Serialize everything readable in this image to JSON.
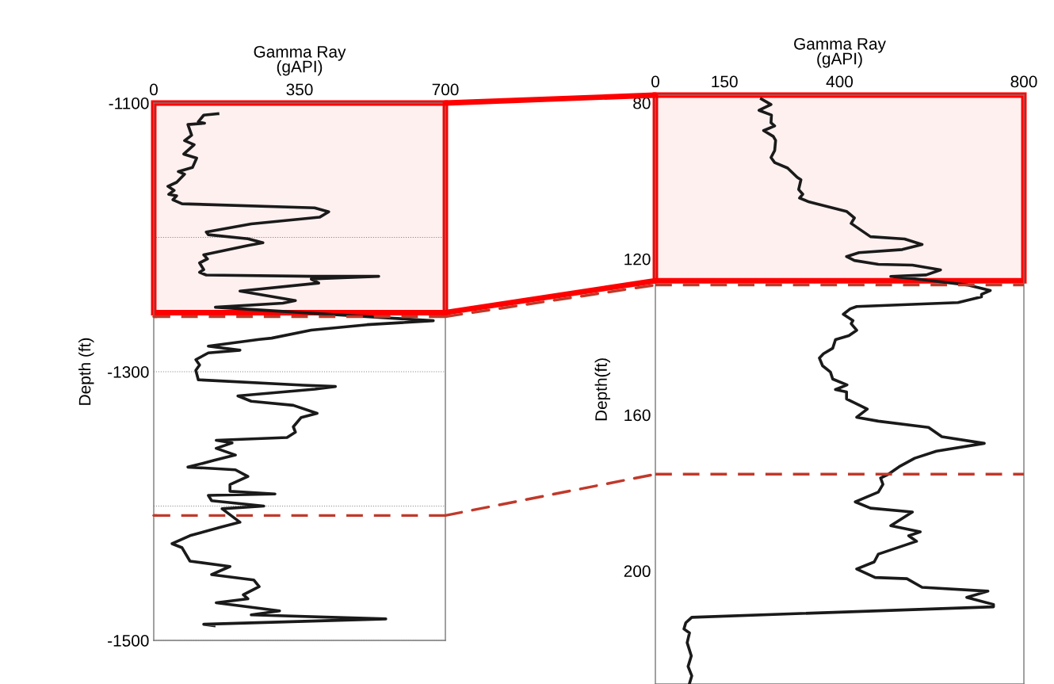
{
  "chart_data": [
    {
      "type": "line",
      "xlabel": "Gamma Ray\n(gAPI)",
      "ylabel": "Depth (ft)",
      "xlim": [
        0,
        700
      ],
      "xticks": [
        0,
        350,
        700
      ],
      "ylim": [
        -1500,
        -1100
      ],
      "yticks": [
        -1100,
        {
          "value": -1200,
          "label": null
        },
        -1300,
        {
          "value": -1400,
          "label": null
        },
        -1500
      ],
      "grid": "y",
      "marker": "none",
      "line_style": "solid",
      "series": [
        {
          "color": "#1a1a1a",
          "x": [
            154,
            120,
            107,
            122,
            82,
            91,
            74,
            97,
            72,
            103,
            93,
            59,
            74,
            55,
            34,
            49,
            36,
            55,
            46,
            68,
            386,
            420,
            398,
            234,
            126,
            131,
            226,
            262,
            226,
            120,
            129,
            110,
            120,
            110,
            126,
            378,
            540,
            378,
            396,
            207,
            340,
            310,
            148,
            671,
            512,
            378,
            283,
            253,
            131,
            207,
            131,
            101,
            110,
            101,
            107,
            359,
            436,
            387,
            202,
            234,
            335,
            392,
            354,
            335,
            340,
            320,
            150,
            188,
            150,
            196,
            145,
            82,
            139,
            196,
            226,
            183,
            183,
            291,
            131,
            139,
            264,
            164,
            207,
            158,
            87,
            44,
            68,
            87,
            183,
            139,
            240,
            253,
            215,
            226,
            150,
            302,
            234,
            557,
            120,
            145
          ],
          "values": [
            -1108,
            -1109,
            -1114,
            -1115,
            -1116,
            -1124,
            -1128,
            -1131,
            -1138,
            -1141,
            -1148,
            -1151,
            -1153,
            -1159,
            -1162,
            -1165,
            -1168,
            -1169,
            -1172,
            -1175,
            -1178,
            -1181,
            -1185,
            -1190,
            -1196,
            -1198,
            -1201,
            -1204,
            -1206,
            -1213,
            -1216,
            -1219,
            -1224,
            -1226,
            -1228,
            -1229,
            -1229,
            -1231,
            -1234,
            -1240,
            -1247,
            -1249,
            -1252,
            -1262,
            -1265,
            -1269,
            -1275,
            -1276,
            -1281,
            -1284,
            -1286,
            -1291,
            -1295,
            -1299,
            -1306,
            -1310,
            -1311,
            -1313,
            -1318,
            -1322,
            -1325,
            -1331,
            -1334,
            -1341,
            -1345,
            -1349,
            -1351,
            -1353,
            -1357,
            -1362,
            -1366,
            -1371,
            -1372,
            -1373,
            -1378,
            -1384,
            -1389,
            -1391,
            -1392,
            -1396,
            -1400,
            -1402,
            -1412,
            -1416,
            -1422,
            -1428,
            -1431,
            -1441,
            -1445,
            -1451,
            -1455,
            -1460,
            -1466,
            -1469,
            -1472,
            -1478,
            -1481,
            -1484,
            -1488,
            -1489
          ]
        }
      ],
      "bands": [
        {
          "axis": "y",
          "from": -1100,
          "to": -1256,
          "color": "#ff0000"
        }
      ],
      "ref_lines": [
        {
          "axis": "y",
          "value": -1259,
          "color": "#c0392b",
          "line_style": "dashed"
        },
        {
          "axis": "y",
          "value": -1407,
          "color": "#c0392b",
          "line_style": "dashed"
        }
      ]
    },
    {
      "type": "line",
      "xlabel": "Gamma Ray\n(gAPI)",
      "ylabel": "Depth(ft)",
      "xlim": [
        0,
        800
      ],
      "xticks": [
        0,
        150,
        400,
        800
      ],
      "ylim": [
        229,
        78
      ],
      "yticks": [
        80,
        120,
        160,
        200
      ],
      "marker": "none",
      "line_style": "solid",
      "series": [
        {
          "color": "#1a1a1a",
          "x": [
            230,
            251,
            225,
            252,
            251,
            259,
            235,
            256,
            261,
            259,
            251,
            259,
            287,
            308,
            316,
            311,
            320,
            313,
            334,
            415,
            432,
            425,
            467,
            541,
            579,
            536,
            442,
            415,
            432,
            484,
            558,
            619,
            588,
            511,
            563,
            679,
            727,
            708,
            708,
            657,
            437,
            423,
            408,
            429,
            425,
            437,
            420,
            391,
            385,
            365,
            356,
            363,
            380,
            385,
            416,
            391,
            415,
            415,
            460,
            437,
            484,
            593,
            622,
            714,
            610,
            563,
            529,
            506,
            489,
            494,
            484,
            434,
            467,
            558,
            511,
            575,
            550,
            567,
            484,
            475,
            437,
            477,
            546,
            579,
            722,
            676,
            734,
            734,
            79,
            66,
            62,
            74,
            69,
            78,
            71,
            79,
            74
          ],
          "values": [
            79.0,
            80.4,
            81.9,
            83.1,
            85.1,
            85.9,
            87.1,
            88.6,
            89.6,
            92.2,
            94.0,
            95.3,
            96.7,
            99.1,
            99.7,
            102.2,
            103.4,
            104.4,
            105.4,
            107.8,
            109.5,
            110.9,
            114.3,
            114.9,
            116.3,
            117.6,
            118.4,
            119.4,
            120.4,
            121.4,
            121.6,
            122.8,
            124.1,
            124.5,
            125.1,
            126.7,
            128.1,
            129.1,
            129.7,
            131.2,
            132.2,
            132.8,
            134.2,
            135.8,
            136.6,
            138.3,
            139.7,
            140.7,
            142.9,
            144.3,
            145.4,
            147.4,
            149.0,
            150.8,
            152.3,
            153.5,
            154.1,
            155.9,
            158.5,
            160.6,
            161.6,
            163.2,
            165.6,
            167.3,
            169.3,
            171.1,
            173.3,
            175.2,
            176.2,
            177.8,
            179.8,
            182.3,
            183.9,
            184.9,
            188.4,
            190.0,
            191.0,
            192.4,
            195.7,
            197.7,
            199.5,
            201.7,
            202.0,
            204.2,
            205.2,
            206.8,
            208.6,
            209.2,
            211.9,
            213.3,
            214.9,
            215.9,
            218.4,
            221.8,
            224.5,
            226.9,
            228.9
          ]
        }
      ],
      "bands": [
        {
          "axis": "y",
          "from": 78,
          "to": 125.6,
          "color": "#ff0000"
        }
      ],
      "ref_lines": [
        {
          "axis": "y",
          "value": 126.7,
          "color": "#c0392b",
          "line_style": "dashed"
        },
        {
          "axis": "y",
          "value": 175.2,
          "color": "#c0392b",
          "line_style": "dashed"
        }
      ]
    }
  ]
}
